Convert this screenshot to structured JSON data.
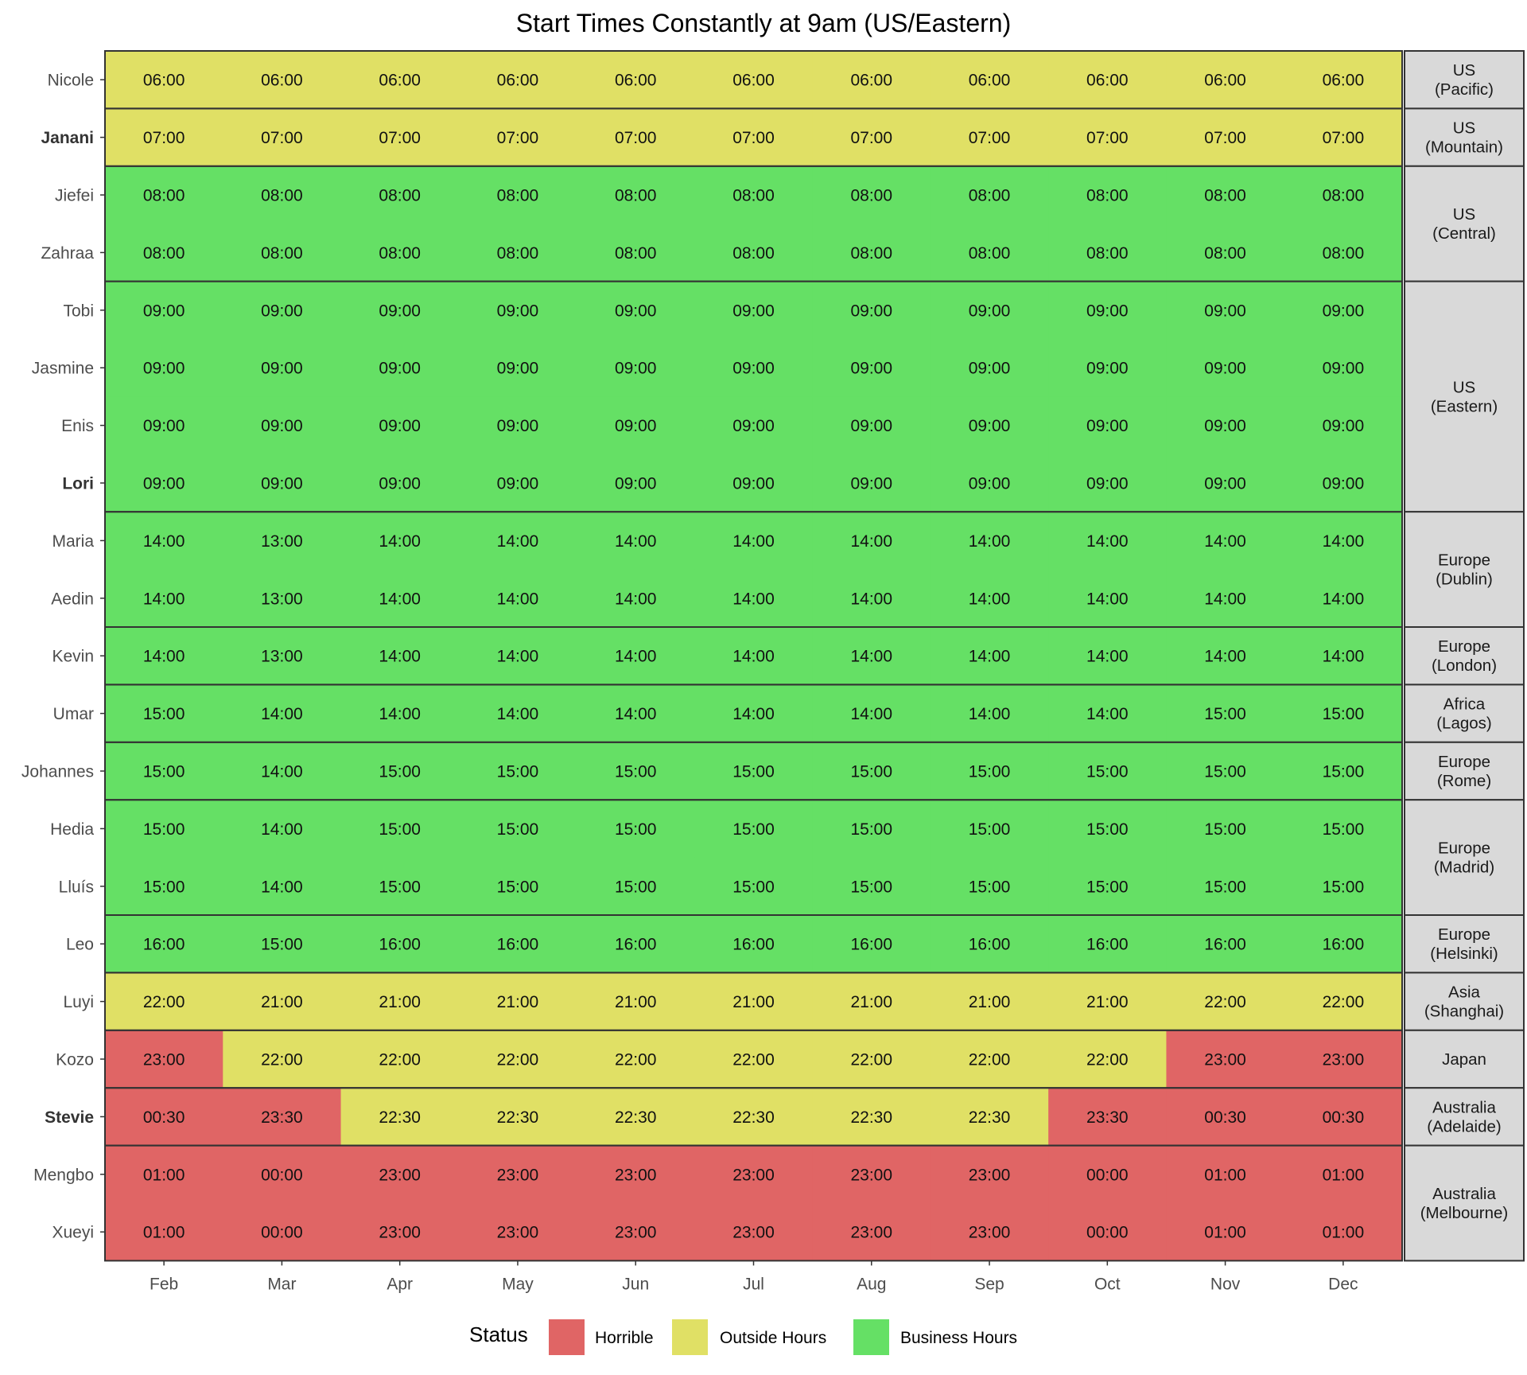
{
  "chart_data": {
    "type": "heatmap",
    "title": "Start Times Constantly at 9am (US/Eastern)",
    "xlabel": "",
    "ylabel": "",
    "months": [
      "Feb",
      "Mar",
      "Apr",
      "May",
      "Jun",
      "Jul",
      "Aug",
      "Sep",
      "Oct",
      "Nov",
      "Dec"
    ],
    "status_colors": {
      "Horrible": "#e06565",
      "Outside Hours": "#e0e065",
      "Business Hours": "#65e065"
    },
    "strip_color": "#d9d9d9",
    "legend": {
      "title": "Status",
      "position": "bottom",
      "entries": [
        "Horrible",
        "Outside Hours",
        "Business Hours"
      ]
    },
    "groups": [
      {
        "label": [
          "US",
          "(Pacific)"
        ],
        "people": [
          {
            "name": "Nicole",
            "bold": false,
            "times": [
              "06:00",
              "06:00",
              "06:00",
              "06:00",
              "06:00",
              "06:00",
              "06:00",
              "06:00",
              "06:00",
              "06:00",
              "06:00"
            ],
            "status": [
              "O",
              "O",
              "O",
              "O",
              "O",
              "O",
              "O",
              "O",
              "O",
              "O",
              "O"
            ]
          }
        ]
      },
      {
        "label": [
          "US",
          "(Mountain)"
        ],
        "people": [
          {
            "name": "Janani",
            "bold": true,
            "times": [
              "07:00",
              "07:00",
              "07:00",
              "07:00",
              "07:00",
              "07:00",
              "07:00",
              "07:00",
              "07:00",
              "07:00",
              "07:00"
            ],
            "status": [
              "O",
              "O",
              "O",
              "O",
              "O",
              "O",
              "O",
              "O",
              "O",
              "O",
              "O"
            ]
          }
        ]
      },
      {
        "label": [
          "US",
          "(Central)"
        ],
        "people": [
          {
            "name": "Jiefei",
            "bold": false,
            "times": [
              "08:00",
              "08:00",
              "08:00",
              "08:00",
              "08:00",
              "08:00",
              "08:00",
              "08:00",
              "08:00",
              "08:00",
              "08:00"
            ],
            "status": [
              "B",
              "B",
              "B",
              "B",
              "B",
              "B",
              "B",
              "B",
              "B",
              "B",
              "B"
            ]
          },
          {
            "name": "Zahraa",
            "bold": false,
            "times": [
              "08:00",
              "08:00",
              "08:00",
              "08:00",
              "08:00",
              "08:00",
              "08:00",
              "08:00",
              "08:00",
              "08:00",
              "08:00"
            ],
            "status": [
              "B",
              "B",
              "B",
              "B",
              "B",
              "B",
              "B",
              "B",
              "B",
              "B",
              "B"
            ]
          }
        ]
      },
      {
        "label": [
          "US",
          "(Eastern)"
        ],
        "people": [
          {
            "name": "Tobi",
            "bold": false,
            "times": [
              "09:00",
              "09:00",
              "09:00",
              "09:00",
              "09:00",
              "09:00",
              "09:00",
              "09:00",
              "09:00",
              "09:00",
              "09:00"
            ],
            "status": [
              "B",
              "B",
              "B",
              "B",
              "B",
              "B",
              "B",
              "B",
              "B",
              "B",
              "B"
            ]
          },
          {
            "name": "Jasmine",
            "bold": false,
            "times": [
              "09:00",
              "09:00",
              "09:00",
              "09:00",
              "09:00",
              "09:00",
              "09:00",
              "09:00",
              "09:00",
              "09:00",
              "09:00"
            ],
            "status": [
              "B",
              "B",
              "B",
              "B",
              "B",
              "B",
              "B",
              "B",
              "B",
              "B",
              "B"
            ]
          },
          {
            "name": "Enis",
            "bold": false,
            "times": [
              "09:00",
              "09:00",
              "09:00",
              "09:00",
              "09:00",
              "09:00",
              "09:00",
              "09:00",
              "09:00",
              "09:00",
              "09:00"
            ],
            "status": [
              "B",
              "B",
              "B",
              "B",
              "B",
              "B",
              "B",
              "B",
              "B",
              "B",
              "B"
            ]
          },
          {
            "name": "Lori",
            "bold": true,
            "times": [
              "09:00",
              "09:00",
              "09:00",
              "09:00",
              "09:00",
              "09:00",
              "09:00",
              "09:00",
              "09:00",
              "09:00",
              "09:00"
            ],
            "status": [
              "B",
              "B",
              "B",
              "B",
              "B",
              "B",
              "B",
              "B",
              "B",
              "B",
              "B"
            ]
          }
        ]
      },
      {
        "label": [
          "Europe",
          "(Dublin)"
        ],
        "people": [
          {
            "name": "Maria",
            "bold": false,
            "times": [
              "14:00",
              "13:00",
              "14:00",
              "14:00",
              "14:00",
              "14:00",
              "14:00",
              "14:00",
              "14:00",
              "14:00",
              "14:00"
            ],
            "status": [
              "B",
              "B",
              "B",
              "B",
              "B",
              "B",
              "B",
              "B",
              "B",
              "B",
              "B"
            ]
          },
          {
            "name": "Aedin",
            "bold": false,
            "times": [
              "14:00",
              "13:00",
              "14:00",
              "14:00",
              "14:00",
              "14:00",
              "14:00",
              "14:00",
              "14:00",
              "14:00",
              "14:00"
            ],
            "status": [
              "B",
              "B",
              "B",
              "B",
              "B",
              "B",
              "B",
              "B",
              "B",
              "B",
              "B"
            ]
          }
        ]
      },
      {
        "label": [
          "Europe",
          "(London)"
        ],
        "people": [
          {
            "name": "Kevin",
            "bold": false,
            "times": [
              "14:00",
              "13:00",
              "14:00",
              "14:00",
              "14:00",
              "14:00",
              "14:00",
              "14:00",
              "14:00",
              "14:00",
              "14:00"
            ],
            "status": [
              "B",
              "B",
              "B",
              "B",
              "B",
              "B",
              "B",
              "B",
              "B",
              "B",
              "B"
            ]
          }
        ]
      },
      {
        "label": [
          "Africa",
          "(Lagos)"
        ],
        "people": [
          {
            "name": "Umar",
            "bold": false,
            "times": [
              "15:00",
              "14:00",
              "14:00",
              "14:00",
              "14:00",
              "14:00",
              "14:00",
              "14:00",
              "14:00",
              "15:00",
              "15:00"
            ],
            "status": [
              "B",
              "B",
              "B",
              "B",
              "B",
              "B",
              "B",
              "B",
              "B",
              "B",
              "B"
            ]
          }
        ]
      },
      {
        "label": [
          "Europe",
          "(Rome)"
        ],
        "people": [
          {
            "name": "Johannes",
            "bold": false,
            "times": [
              "15:00",
              "14:00",
              "15:00",
              "15:00",
              "15:00",
              "15:00",
              "15:00",
              "15:00",
              "15:00",
              "15:00",
              "15:00"
            ],
            "status": [
              "B",
              "B",
              "B",
              "B",
              "B",
              "B",
              "B",
              "B",
              "B",
              "B",
              "B"
            ]
          }
        ]
      },
      {
        "label": [
          "Europe",
          "(Madrid)"
        ],
        "people": [
          {
            "name": "Hedia",
            "bold": false,
            "times": [
              "15:00",
              "14:00",
              "15:00",
              "15:00",
              "15:00",
              "15:00",
              "15:00",
              "15:00",
              "15:00",
              "15:00",
              "15:00"
            ],
            "status": [
              "B",
              "B",
              "B",
              "B",
              "B",
              "B",
              "B",
              "B",
              "B",
              "B",
              "B"
            ]
          },
          {
            "name": "Lluís",
            "bold": false,
            "times": [
              "15:00",
              "14:00",
              "15:00",
              "15:00",
              "15:00",
              "15:00",
              "15:00",
              "15:00",
              "15:00",
              "15:00",
              "15:00"
            ],
            "status": [
              "B",
              "B",
              "B",
              "B",
              "B",
              "B",
              "B",
              "B",
              "B",
              "B",
              "B"
            ]
          }
        ]
      },
      {
        "label": [
          "Europe",
          "(Helsinki)"
        ],
        "people": [
          {
            "name": "Leo",
            "bold": false,
            "times": [
              "16:00",
              "15:00",
              "16:00",
              "16:00",
              "16:00",
              "16:00",
              "16:00",
              "16:00",
              "16:00",
              "16:00",
              "16:00"
            ],
            "status": [
              "B",
              "B",
              "B",
              "B",
              "B",
              "B",
              "B",
              "B",
              "B",
              "B",
              "B"
            ]
          }
        ]
      },
      {
        "label": [
          "Asia",
          "(Shanghai)"
        ],
        "people": [
          {
            "name": "Luyi",
            "bold": false,
            "times": [
              "22:00",
              "21:00",
              "21:00",
              "21:00",
              "21:00",
              "21:00",
              "21:00",
              "21:00",
              "21:00",
              "22:00",
              "22:00"
            ],
            "status": [
              "O",
              "O",
              "O",
              "O",
              "O",
              "O",
              "O",
              "O",
              "O",
              "O",
              "O"
            ]
          }
        ]
      },
      {
        "label": [
          "Japan"
        ],
        "people": [
          {
            "name": "Kozo",
            "bold": false,
            "times": [
              "23:00",
              "22:00",
              "22:00",
              "22:00",
              "22:00",
              "22:00",
              "22:00",
              "22:00",
              "22:00",
              "23:00",
              "23:00"
            ],
            "status": [
              "H",
              "O",
              "O",
              "O",
              "O",
              "O",
              "O",
              "O",
              "O",
              "H",
              "H"
            ]
          }
        ]
      },
      {
        "label": [
          "Australia",
          "(Adelaide)"
        ],
        "people": [
          {
            "name": "Stevie",
            "bold": true,
            "times": [
              "00:30",
              "23:30",
              "22:30",
              "22:30",
              "22:30",
              "22:30",
              "22:30",
              "22:30",
              "23:30",
              "00:30",
              "00:30"
            ],
            "status": [
              "H",
              "H",
              "O",
              "O",
              "O",
              "O",
              "O",
              "O",
              "H",
              "H",
              "H"
            ]
          }
        ]
      },
      {
        "label": [
          "Australia",
          "(Melbourne)"
        ],
        "people": [
          {
            "name": "Mengbo",
            "bold": false,
            "times": [
              "01:00",
              "00:00",
              "23:00",
              "23:00",
              "23:00",
              "23:00",
              "23:00",
              "23:00",
              "00:00",
              "01:00",
              "01:00"
            ],
            "status": [
              "H",
              "H",
              "H",
              "H",
              "H",
              "H",
              "H",
              "H",
              "H",
              "H",
              "H"
            ]
          },
          {
            "name": "Xueyi",
            "bold": false,
            "times": [
              "01:00",
              "00:00",
              "23:00",
              "23:00",
              "23:00",
              "23:00",
              "23:00",
              "23:00",
              "00:00",
              "01:00",
              "01:00"
            ],
            "status": [
              "H",
              "H",
              "H",
              "H",
              "H",
              "H",
              "H",
              "H",
              "H",
              "H",
              "H"
            ]
          }
        ]
      }
    ]
  }
}
